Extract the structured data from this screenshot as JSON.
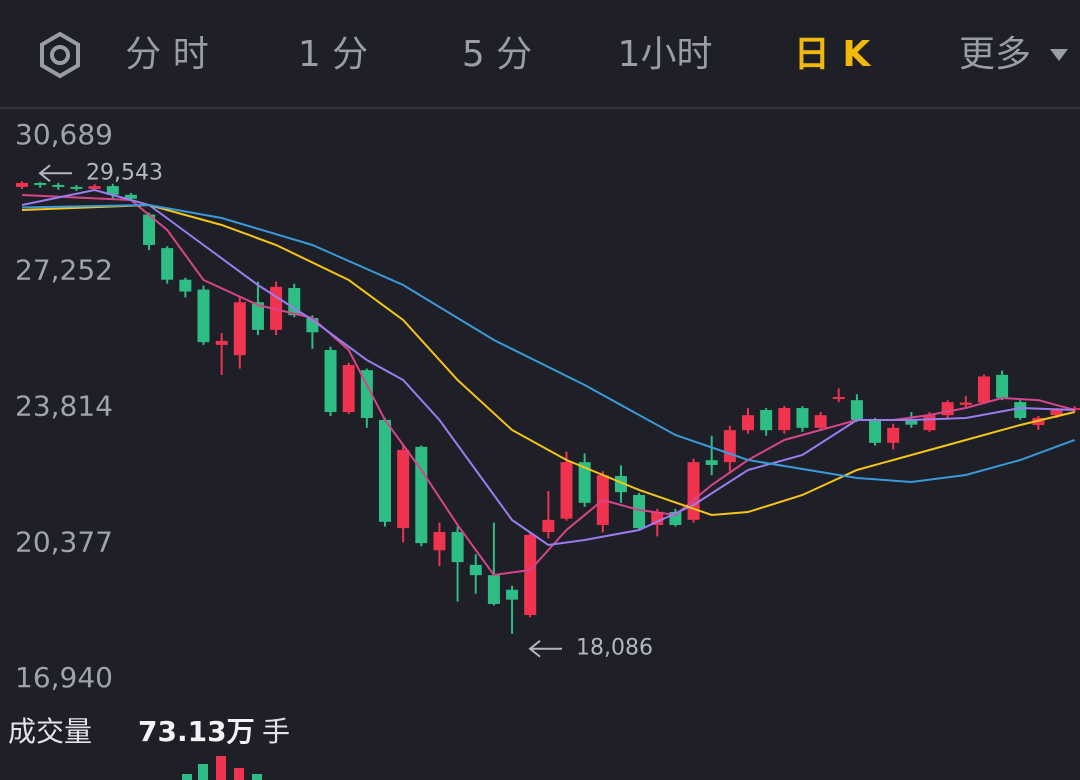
{
  "tabs": [
    "分 时",
    "1 分",
    "5 分",
    "1小时",
    "日 K",
    "更多"
  ],
  "active_tab": 4,
  "chart_data": {
    "type": "candlestick",
    "up_color": "#f0344f",
    "down_color": "#2ebd85",
    "open": [
      29400,
      29500,
      29450,
      29400,
      29350,
      29420,
      29200,
      28700,
      27850,
      27050,
      26800,
      25400,
      25140,
      26480,
      25780,
      26840,
      26080,
      25270,
      23700,
      24760,
      23500,
      20760,
      22820,
      20200,
      20660,
      19830,
      19570,
      19200,
      18560,
      20660,
      21000,
      22430,
      20840,
      22080,
      21600,
      20840,
      21170,
      20970,
      22480,
      22430,
      23240,
      23750,
      23240,
      23800,
      23300,
      24050,
      24000,
      23500,
      22920,
      23500,
      23240,
      23620,
      23880,
      23940,
      24640,
      23950,
      23370,
      23620,
      23750
    ],
    "high": [
      29543,
      29520,
      29500,
      29450,
      29470,
      29480,
      29250,
      28750,
      27900,
      27100,
      26900,
      25700,
      26600,
      27000,
      27000,
      26950,
      26150,
      25350,
      24950,
      24800,
      23550,
      22900,
      22850,
      20900,
      20800,
      20100,
      20900,
      19300,
      20650,
      21700,
      22700,
      22650,
      22200,
      22350,
      21650,
      21250,
      21250,
      22520,
      23100,
      23350,
      23800,
      23800,
      23850,
      23850,
      23700,
      24300,
      24150,
      23550,
      23400,
      23700,
      23700,
      24000,
      24100,
      24650,
      24750,
      24000,
      23600,
      23800,
      23850
    ],
    "low": [
      29350,
      29380,
      29330,
      29300,
      29300,
      29100,
      29050,
      27800,
      26950,
      26600,
      25400,
      24640,
      24800,
      25650,
      25650,
      26100,
      25300,
      23600,
      23650,
      23300,
      20800,
      20400,
      20300,
      19800,
      18900,
      19100,
      18800,
      18086,
      18500,
      20500,
      20950,
      21300,
      20650,
      21400,
      20700,
      20550,
      20800,
      20900,
      22100,
      22200,
      23150,
      23100,
      23150,
      23200,
      23250,
      23950,
      23450,
      22850,
      22750,
      23300,
      23200,
      23550,
      23800,
      23900,
      24000,
      23500,
      23250,
      23550,
      23700
    ],
    "close": [
      29500,
      29450,
      29400,
      29350,
      29420,
      29200,
      29100,
      27930,
      27050,
      26750,
      25470,
      25500,
      26480,
      25780,
      26870,
      26150,
      25720,
      23700,
      24890,
      23550,
      20920,
      22740,
      20380,
      20660,
      19900,
      19570,
      18840,
      18950,
      20590,
      20970,
      22430,
      21400,
      22100,
      21670,
      20760,
      21170,
      20840,
      22430,
      22360,
      23240,
      23620,
      23240,
      23800,
      23300,
      23620,
      24080,
      23500,
      22920,
      23300,
      23380,
      23620,
      23950,
      23940,
      24600,
      24060,
      23550,
      23550,
      23750,
      23800
    ],
    "ylim": [
      16940,
      30689
    ],
    "yticks": [
      {
        "value": 30689,
        "label": "30,689"
      },
      {
        "value": 27252,
        "label": "27,252"
      },
      {
        "value": 23814,
        "label": "23,814"
      },
      {
        "value": 20377,
        "label": "20,377"
      },
      {
        "value": 16940,
        "label": "16,940"
      }
    ],
    "annotations": [
      {
        "index": 0,
        "value": 29543,
        "label": "29,543"
      },
      {
        "index": 27,
        "value": 18086,
        "label": "18,086"
      }
    ],
    "moving_averages": [
      {
        "color": "#d6458a",
        "x": [
          0,
          6,
          8,
          10,
          13,
          16,
          18,
          20,
          22,
          24,
          26,
          28,
          30,
          32,
          34,
          36,
          38,
          40,
          42,
          44,
          46,
          48,
          50,
          52,
          54,
          56,
          58
        ],
        "values": [
          29195,
          29068,
          28309,
          27043,
          26410,
          26081,
          25271,
          23498,
          22232,
          20840,
          19574,
          19700,
          20713,
          21472,
          21219,
          21093,
          21852,
          22485,
          22992,
          23245,
          23498,
          23498,
          23625,
          23802,
          24055,
          24000,
          23752
        ]
      },
      {
        "color": "#9b7cf0",
        "x": [
          0,
          4,
          7,
          10,
          13,
          16,
          19,
          21,
          23,
          25,
          27,
          29,
          31,
          34,
          37,
          40,
          43,
          46,
          49,
          52,
          55,
          58
        ],
        "values": [
          28942,
          29322,
          28942,
          27929,
          26916,
          26030,
          25017,
          24511,
          23498,
          22232,
          20966,
          20333,
          20460,
          20713,
          21346,
          22232,
          22612,
          23498,
          23498,
          23549,
          23802,
          23752
        ]
      },
      {
        "color": "#f5c518",
        "x": [
          0,
          7,
          11,
          14,
          18,
          21,
          24,
          27,
          30,
          34,
          38,
          40,
          43,
          46,
          49,
          52,
          55,
          58
        ],
        "values": [
          28815,
          28942,
          28436,
          27929,
          27043,
          26030,
          24511,
          23245,
          22485,
          21726,
          21093,
          21168,
          21599,
          22232,
          22612,
          22992,
          23372,
          23701
        ]
      },
      {
        "color": "#3a9ad9",
        "x": [
          0,
          7,
          11,
          16,
          21,
          26,
          31,
          36,
          40,
          46,
          49,
          52,
          55,
          58
        ],
        "values": [
          28880,
          28942,
          28613,
          27929,
          26916,
          25524,
          24384,
          23118,
          22485,
          22030,
          21929,
          22106,
          22485,
          22992
        ]
      }
    ]
  },
  "volume": {
    "label": "成交量",
    "value": "73.13万",
    "unit": "手"
  }
}
